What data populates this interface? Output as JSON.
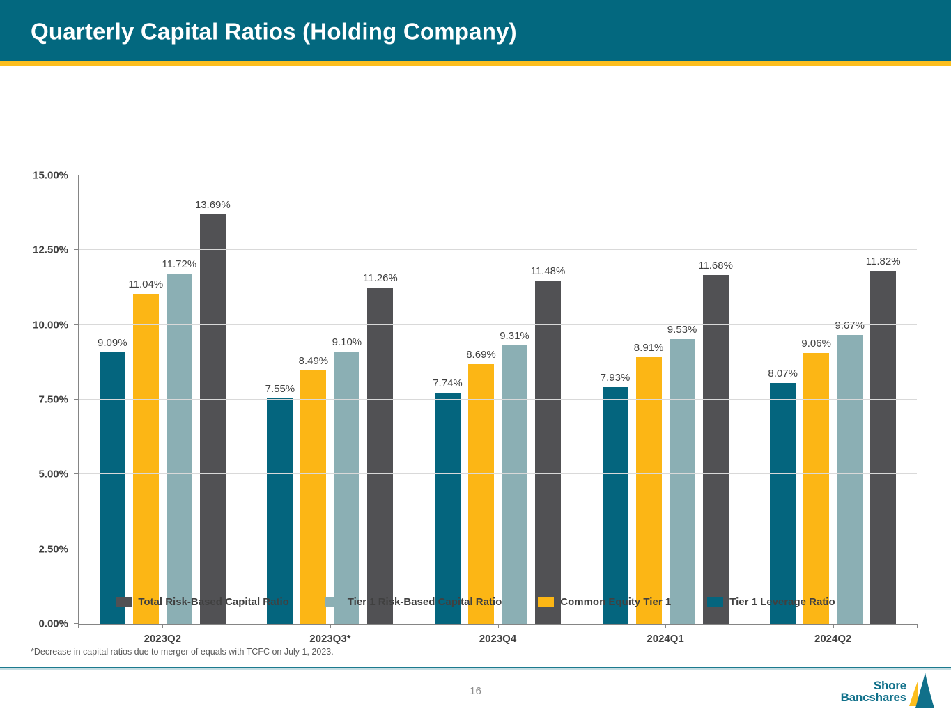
{
  "header": {
    "title": "Quarterly Capital Ratios (Holding Company)"
  },
  "colors": {
    "header_teal": "#03687F",
    "accent_gold": "#FCBE1E",
    "divider_teal": "#1C7A8E",
    "gridline": "#D9D9D9",
    "axis": "#858585",
    "label_gray": "#404040",
    "series_dark_gray": "#515154",
    "series_light_teal": "#8BAFB4",
    "series_gold": "#FCB615",
    "series_dark_teal": "#04657E"
  },
  "chart_data": {
    "type": "bar",
    "title": "Quarterly Capital Ratios (Holding Company)",
    "xlabel": "",
    "ylabel": "",
    "ylim": [
      0,
      15
    ],
    "grid": "horizontal",
    "legend_position": "bottom",
    "categories": [
      "2023Q2",
      "2023Q3*",
      "2023Q4",
      "2024Q1",
      "2024Q2"
    ],
    "y_ticks": [
      {
        "value": 0,
        "label": "0.00%"
      },
      {
        "value": 2.5,
        "label": "2.50%"
      },
      {
        "value": 5,
        "label": "5.00%"
      },
      {
        "value": 7.5,
        "label": "7.50%"
      },
      {
        "value": 10,
        "label": "10.00%"
      },
      {
        "value": 12.5,
        "label": "12.50%"
      },
      {
        "value": 15,
        "label": "15.00%"
      }
    ],
    "series": [
      {
        "name": "Tier 1 Leverage Ratio",
        "color": "#04657E",
        "values": [
          9.09,
          7.55,
          7.74,
          7.93,
          8.07
        ],
        "labels": [
          "9.09%",
          "7.55%",
          "7.74%",
          "7.93%",
          "8.07%"
        ]
      },
      {
        "name": "Common Equity Tier 1",
        "color": "#FCB615",
        "values": [
          11.04,
          8.49,
          8.69,
          8.91,
          9.06
        ],
        "labels": [
          "11.04%",
          "8.49%",
          "8.69%",
          "8.91%",
          "9.06%"
        ]
      },
      {
        "name": "Tier 1 Risk-Based Capital Ratio",
        "color": "#8BAFB4",
        "values": [
          11.72,
          9.1,
          9.31,
          9.53,
          9.67
        ],
        "labels": [
          "11.72%",
          "9.10%",
          "9.31%",
          "9.53%",
          "9.67%"
        ]
      },
      {
        "name": "Total Risk-Based Capital Ratio",
        "color": "#515154",
        "values": [
          13.69,
          11.26,
          11.48,
          11.68,
          11.82
        ],
        "labels": [
          "13.69%",
          "11.26%",
          "11.48%",
          "11.68%",
          "11.82%"
        ]
      }
    ]
  },
  "legend": {
    "items": [
      {
        "label": "Total Risk-Based Capital Ratio",
        "color": "#515154"
      },
      {
        "label": "Tier 1 Risk-Based Capital Ratio",
        "color": "#8BAFB4"
      },
      {
        "label": "Common Equity Tier 1",
        "color": "#FCB615"
      },
      {
        "label": "Tier 1 Leverage Ratio",
        "color": "#04657E"
      }
    ]
  },
  "footnote": {
    "text": "*Decrease in capital ratios due to merger of equals with TCFC on July 1, 2023."
  },
  "footer": {
    "page_number": "16",
    "logo_line1": "Shore",
    "logo_line2": "Bancshares"
  }
}
